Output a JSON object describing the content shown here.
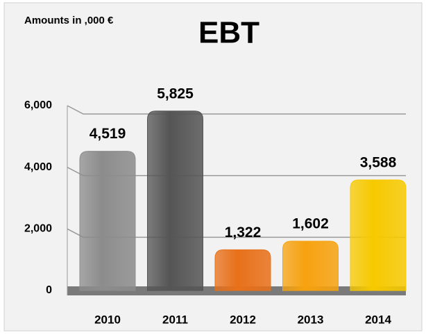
{
  "chart_data": {
    "type": "bar",
    "title": "EBT",
    "annotation": "Amounts in ,000 €",
    "categories": [
      "2010",
      "2011",
      "2012",
      "2013",
      "2014"
    ],
    "values": [
      4519,
      5825,
      1322,
      1602,
      3588
    ],
    "value_labels": [
      "4,519",
      "5,825",
      "1,322",
      "1,602",
      "3,588"
    ],
    "colors": [
      "#8c8c8c",
      "#555555",
      "#e8701a",
      "#f7a20f",
      "#f7c900"
    ],
    "ylim": [
      0,
      6000
    ],
    "yticks": [
      0,
      {
        "value": 2000,
        "label": "2,000"
      },
      {
        "value": 4000,
        "label": "4,000"
      },
      {
        "value": 6000,
        "label": "6,000"
      }
    ],
    "grid": true
  }
}
